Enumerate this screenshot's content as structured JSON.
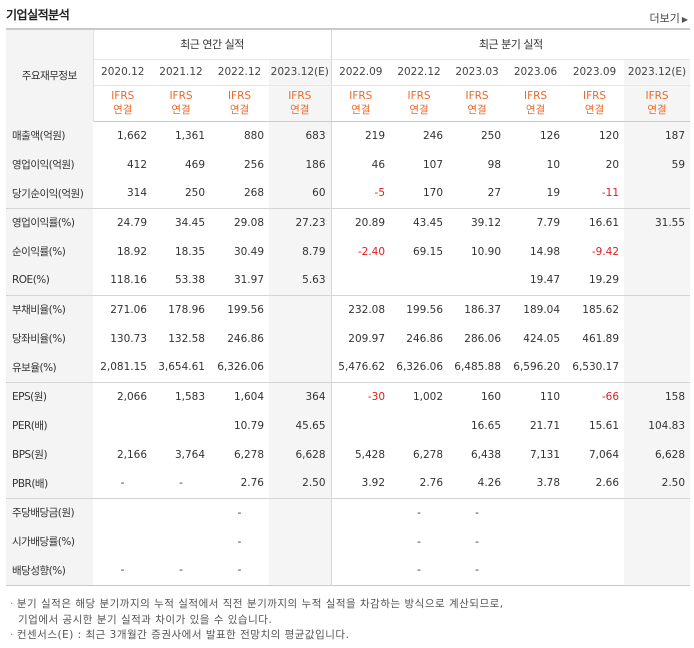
{
  "header": {
    "title": "기업실적분석",
    "more_label": "더보기",
    "more_arrow": "▶"
  },
  "table": {
    "main_label": "주요재무정보",
    "group_annual": "최근 연간 실적",
    "group_quarter": "최근 분기 실적",
    "periods": [
      "2020.12",
      "2021.12",
      "2022.12",
      "2023.12(E)",
      "2022.09",
      "2022.12",
      "2023.03",
      "2023.06",
      "2023.09",
      "2023.12(E)"
    ],
    "ifrs_line1": "IFRS",
    "ifrs_line2": "연결",
    "rows": [
      {
        "label": "매출액(억원)",
        "values": [
          "1,662",
          "1,361",
          "880",
          "683",
          "219",
          "246",
          "250",
          "126",
          "120",
          "187"
        ]
      },
      {
        "label": "영업이익(억원)",
        "values": [
          "412",
          "469",
          "256",
          "186",
          "46",
          "107",
          "98",
          "10",
          "20",
          "59"
        ]
      },
      {
        "label": "당기순이익(억원)",
        "values": [
          "314",
          "250",
          "268",
          "60",
          "-5",
          "170",
          "27",
          "19",
          "-11",
          ""
        ]
      },
      {
        "label": "영업이익률(%)",
        "values": [
          "24.79",
          "34.45",
          "29.08",
          "27.23",
          "20.89",
          "43.45",
          "39.12",
          "7.79",
          "16.61",
          "31.55"
        ]
      },
      {
        "label": "순이익률(%)",
        "values": [
          "18.92",
          "18.35",
          "30.49",
          "8.79",
          "-2.40",
          "69.15",
          "10.90",
          "14.98",
          "-9.42",
          ""
        ]
      },
      {
        "label": "ROE(%)",
        "values": [
          "118.16",
          "53.38",
          "31.97",
          "5.63",
          "",
          "",
          "",
          "19.47",
          "19.29",
          ""
        ]
      },
      {
        "label": "부채비율(%)",
        "values": [
          "271.06",
          "178.96",
          "199.56",
          "",
          "232.08",
          "199.56",
          "186.37",
          "189.04",
          "185.62",
          ""
        ]
      },
      {
        "label": "당좌비율(%)",
        "values": [
          "130.73",
          "132.58",
          "246.86",
          "",
          "209.97",
          "246.86",
          "286.06",
          "424.05",
          "461.89",
          ""
        ]
      },
      {
        "label": "유보율(%)",
        "values": [
          "2,081.15",
          "3,654.61",
          "6,326.06",
          "",
          "5,476.62",
          "6,326.06",
          "6,485.88",
          "6,596.20",
          "6,530.17",
          ""
        ]
      },
      {
        "label": "EPS(원)",
        "values": [
          "2,066",
          "1,583",
          "1,604",
          "364",
          "-30",
          "1,002",
          "160",
          "110",
          "-66",
          "158"
        ]
      },
      {
        "label": "PER(배)",
        "values": [
          "",
          "",
          "10.79",
          "45.65",
          "",
          "",
          "16.65",
          "21.71",
          "15.61",
          "104.83"
        ]
      },
      {
        "label": "BPS(원)",
        "values": [
          "2,166",
          "3,764",
          "6,278",
          "6,628",
          "5,428",
          "6,278",
          "6,438",
          "7,131",
          "7,064",
          "6,628"
        ]
      },
      {
        "label": "PBR(배)",
        "values": [
          "-",
          "-",
          "2.76",
          "2.50",
          "3.92",
          "2.76",
          "4.26",
          "3.78",
          "2.66",
          "2.50"
        ]
      },
      {
        "label": "주당배당금(원)",
        "values": [
          "",
          "",
          "-",
          "",
          "",
          "-",
          "-",
          "",
          "",
          ""
        ]
      },
      {
        "label": "시가배당률(%)",
        "values": [
          "",
          "",
          "-",
          "",
          "",
          "-",
          "-",
          "",
          "",
          ""
        ]
      },
      {
        "label": "배당성향(%)",
        "values": [
          "-",
          "-",
          "-",
          "",
          "",
          "-",
          "-",
          "",
          "",
          ""
        ]
      }
    ]
  },
  "footnotes": {
    "line1": "분기 실적은 해당 분기까지의 누적 실적에서 직전 분기까지의 누적 실적을 차감하는 방식으로 계산되므로,",
    "line2": "기업에서 공시한 분기 실적과 차이가 있을 수 있습니다.",
    "line3": "컨센서스(E) : 최근 3개월간 증권사에서 발표한 전망치의 평균값입니다."
  },
  "colors": {
    "ifrs": "#e86a2a",
    "negative": "#e31b1b",
    "label_bg": "#f4f4f4",
    "estimate_bg": "#f5f5f5"
  }
}
